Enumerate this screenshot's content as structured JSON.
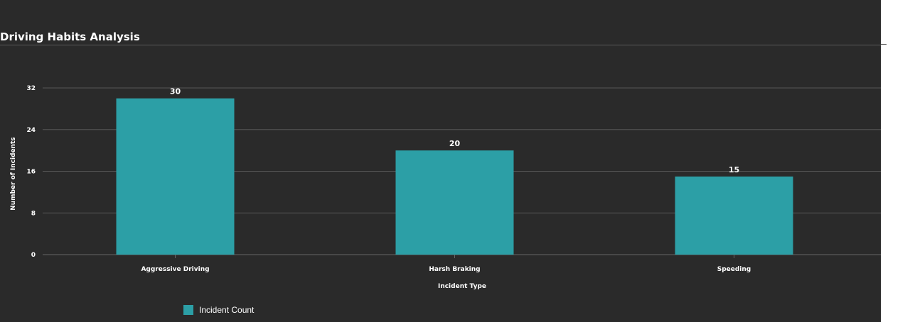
{
  "chart_data": {
    "type": "bar",
    "title": "Driving Habits Analysis",
    "xlabel": "Incident Type",
    "ylabel": "Number of Incidents",
    "categories": [
      "Aggressive Driving",
      "Harsh Braking",
      "Speeding"
    ],
    "series": [
      {
        "name": "Incident Count",
        "values": [
          30,
          20,
          15
        ]
      }
    ],
    "ylim": [
      0,
      32
    ],
    "yticks": [
      "0",
      "8",
      "16",
      "24",
      "32"
    ],
    "grid": true,
    "legend": "bottom-left",
    "colors": {
      "bar": "#2c9fa6",
      "background": "#2a2a2a",
      "grid": "#555555",
      "text": "#ffffff"
    }
  }
}
